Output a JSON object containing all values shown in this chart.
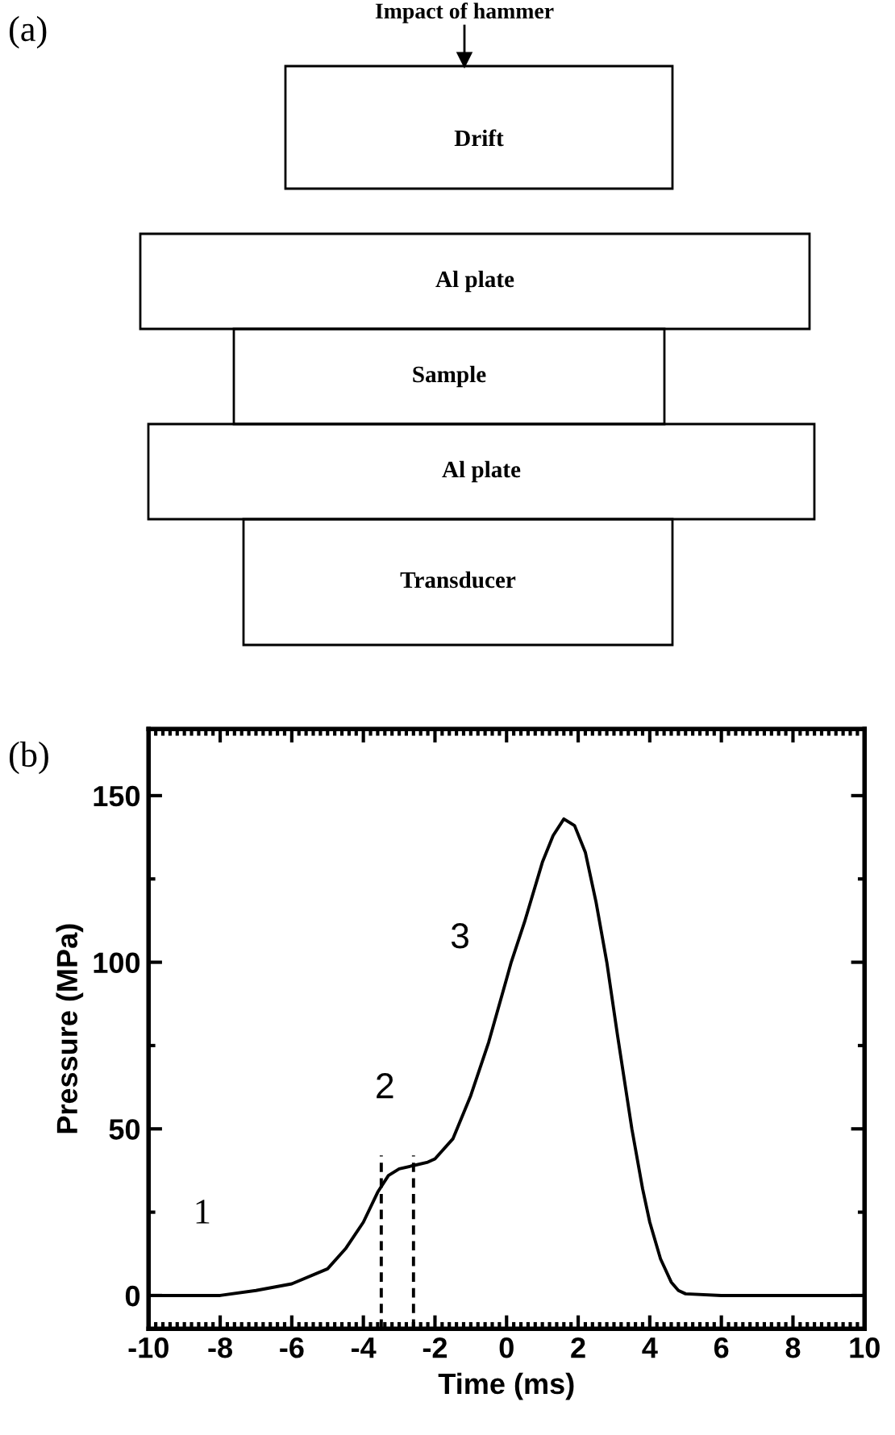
{
  "chart_data": [
    {
      "type": "other",
      "title": "(a)",
      "annotations": [
        "Impact of hammer",
        "Drift",
        "Al plate",
        "Sample",
        "Al plate",
        "Transducer"
      ]
    },
    {
      "type": "line",
      "title": "(b)",
      "xlabel": "Time (ms)",
      "ylabel": "Pressure (MPa)",
      "xlim": [
        -10,
        10
      ],
      "ylim": [
        -10,
        170
      ],
      "xticks": [
        -10,
        -8,
        -6,
        -4,
        -2,
        0,
        2,
        4,
        6,
        8,
        10
      ],
      "yticks": [
        0,
        50,
        100,
        150
      ],
      "grid": false,
      "series": [
        {
          "color": "#000000",
          "line_style": "solid",
          "x": [
            -10,
            -8,
            -7,
            -6,
            -5,
            -4.5,
            -4,
            -3.6,
            -3.3,
            -3,
            -2.6,
            -2.2,
            -2,
            -1.5,
            -1,
            -0.5,
            0,
            0.13,
            0.5,
            1,
            1.3,
            1.6,
            1.9,
            2.2,
            2.5,
            2.8,
            3.1,
            3.5,
            3.8,
            4,
            4.3,
            4.6,
            4.8,
            5,
            6,
            10
          ],
          "values": [
            0,
            0,
            1.5,
            3.5,
            8,
            14,
            22,
            31,
            36,
            38,
            39,
            40,
            41,
            47,
            60,
            76,
            95,
            100,
            112,
            130,
            138,
            143,
            141,
            133,
            118,
            100,
            78,
            50,
            32,
            22,
            11,
            4,
            1.5,
            0.5,
            0,
            0
          ]
        },
        {
          "color": "#000000",
          "line_style": "dashed",
          "x": [
            -3.5,
            -3.5
          ],
          "values": [
            -10,
            42
          ]
        },
        {
          "color": "#000000",
          "line_style": "dashed",
          "x": [
            -2.6,
            -2.6
          ],
          "values": [
            -10,
            42
          ]
        }
      ],
      "annotations": [
        "1",
        "2",
        "3"
      ]
    }
  ]
}
